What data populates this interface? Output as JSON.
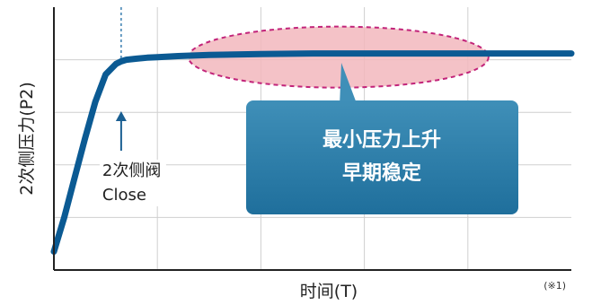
{
  "chart_data": {
    "type": "line",
    "xlabel": "时间(T)",
    "ylabel": "2次侧压力(P2)",
    "footnote": "(※1)",
    "grid": true,
    "xlim": [
      0,
      5
    ],
    "ylim": [
      0,
      5
    ],
    "series": [
      {
        "x": [
          0,
          0.1,
          0.2,
          0.3,
          0.4,
          0.5,
          0.6,
          0.65,
          0.7,
          0.8,
          0.9,
          1.0,
          1.2,
          1.5,
          2.0,
          2.5,
          3.0,
          3.5,
          4.0,
          4.5,
          5.0
        ],
        "y": [
          0.35,
          1.0,
          1.75,
          2.5,
          3.2,
          3.72,
          3.92,
          3.97,
          4.0,
          4.02,
          4.04,
          4.05,
          4.07,
          4.09,
          4.11,
          4.12,
          4.12,
          4.12,
          4.12,
          4.12,
          4.12
        ]
      }
    ],
    "annotations": {
      "valve_marker_x": 0.65,
      "valve_label_line1": "2次侧阀",
      "valve_label_line2": "Close",
      "highlight_x_range": [
        1.3,
        4.2
      ],
      "highlight_y": 4.05,
      "callout_line1": "最小压力上升",
      "callout_line2": "早期稳定"
    }
  },
  "colors": {
    "curve": "#0b5a93",
    "grid": "#cfcfcf",
    "axis": "#222222",
    "marker_line": "#3a7fb0",
    "marker_arrow": "#1a5f92",
    "ellipse_fill": "#f2b7bd",
    "ellipse_stroke": "#c2247a",
    "callout_top": "#3f8fb8",
    "callout_bottom": "#1f6f9c"
  }
}
